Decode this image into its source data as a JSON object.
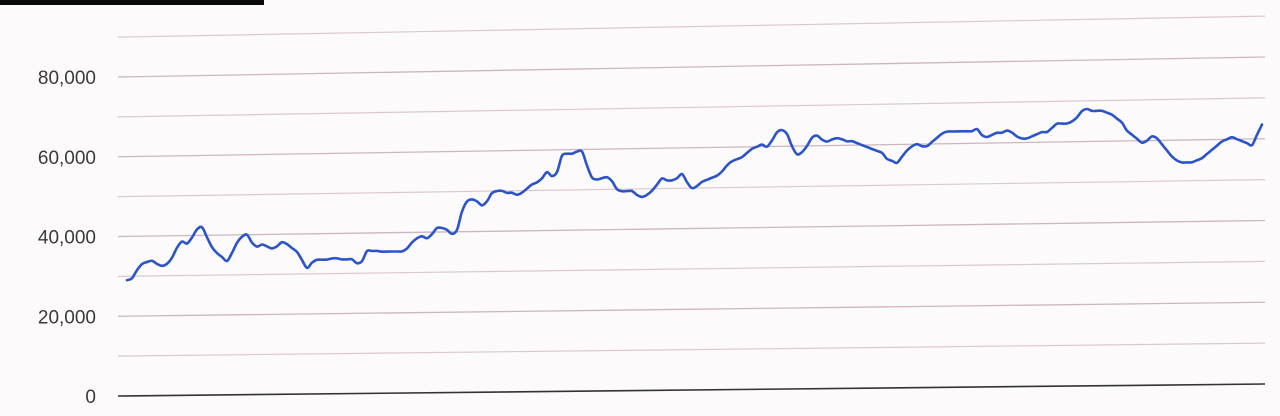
{
  "chart_data": {
    "type": "line",
    "title": "",
    "xlabel": "",
    "ylabel": "",
    "ylim": [
      0,
      80000
    ],
    "y_ticks": [
      0,
      20000,
      40000,
      60000,
      80000
    ],
    "y_tick_labels": [
      "0",
      "20,000",
      "40,000",
      "60,000",
      "80,000"
    ],
    "x_tick_labels": [
      "",
      "",
      "",
      "",
      "",
      "",
      "",
      "",
      "",
      "",
      "",
      "",
      "",
      "",
      "",
      "",
      "",
      "",
      "",
      "",
      ""
    ],
    "grid": true,
    "legend": "none",
    "line_color": "#2b54c9",
    "series": [
      {
        "values": [
          29000,
          29500,
          31500,
          33000,
          33500,
          33800,
          33000,
          32500,
          33000,
          34500,
          37000,
          38500,
          38000,
          39500,
          41500,
          42000,
          39500,
          37000,
          35500,
          34500,
          33500,
          35500,
          38000,
          39500,
          40000,
          38000,
          37000,
          37500,
          37000,
          36500,
          37000,
          38000,
          37500,
          36500,
          35500,
          33500,
          31500,
          32800,
          33500,
          33500,
          33500,
          33800,
          33800,
          33500,
          33500,
          33500,
          32500,
          33000,
          35500,
          35500,
          35500,
          35300,
          35300,
          35300,
          35300,
          35300,
          36000,
          37500,
          38500,
          39000,
          38500,
          39500,
          41000,
          41000,
          40500,
          39500,
          40500,
          45000,
          47500,
          48000,
          47500,
          46500,
          47500,
          49500,
          50000,
          50000,
          49500,
          49500,
          49000,
          49500,
          50500,
          51500,
          52000,
          53000,
          54500,
          53500,
          54500,
          58500,
          59000,
          59000,
          59500,
          59500,
          56000,
          53000,
          52500,
          52800,
          53000,
          52000,
          50000,
          49500,
          49500,
          49500,
          48500,
          48000,
          48500,
          49500,
          51000,
          52500,
          52000,
          52000,
          52500,
          53500,
          51500,
          50000,
          50500,
          51500,
          52000,
          52500,
          53000,
          54000,
          55500,
          56500,
          57000,
          57500,
          58500,
          59500,
          60000,
          60500,
          60000,
          61500,
          63500,
          64000,
          63000,
          60000,
          58000,
          58500,
          60000,
          62000,
          62500,
          61500,
          61000,
          61500,
          61800,
          61500,
          61000,
          61000,
          60500,
          60000,
          59500,
          59000,
          58500,
          58000,
          56500,
          56000,
          55500,
          57000,
          58500,
          59500,
          60000,
          59500,
          59500,
          60500,
          61500,
          62500,
          63000,
          63000,
          63000,
          63000,
          63000,
          63000,
          63500,
          62000,
          61500,
          62000,
          62500,
          62500,
          63000,
          62500,
          61500,
          61000,
          61000,
          61500,
          62000,
          62500,
          62500,
          63500,
          64500,
          64500,
          64500,
          65000,
          66000,
          67500,
          68000,
          67500,
          67500,
          67500,
          67000,
          66500,
          65500,
          64500,
          62500,
          61500,
          60500,
          59500,
          60000,
          61000,
          60500,
          59000,
          57500,
          56000,
          55000,
          54500,
          54500,
          54500,
          55000,
          55500,
          56500,
          57500,
          58500,
          59500,
          60000,
          60500,
          60000,
          59500,
          59000,
          58500,
          61000,
          63500
        ]
      }
    ]
  }
}
